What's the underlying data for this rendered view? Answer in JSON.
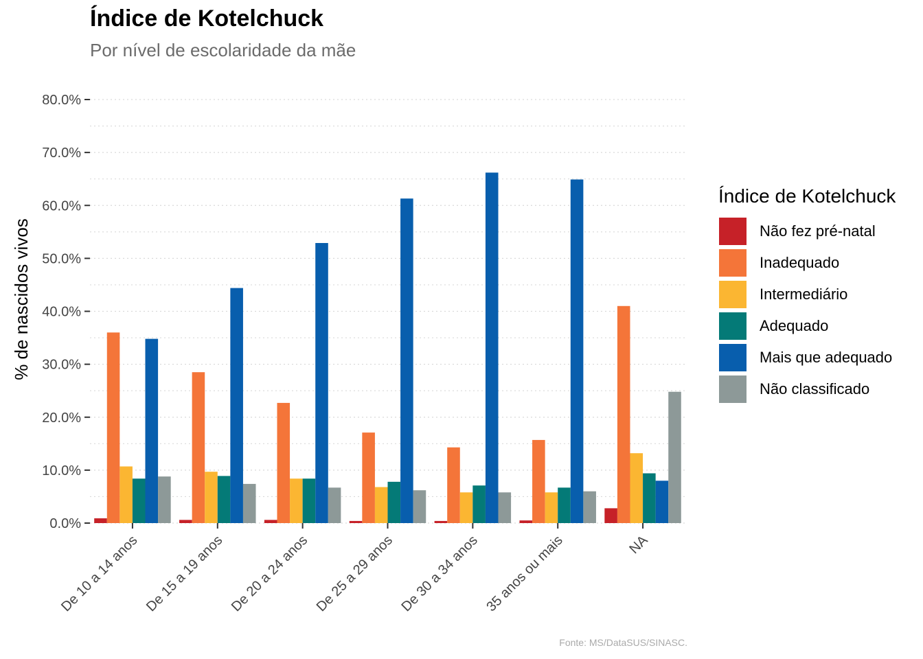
{
  "chart_data": {
    "type": "bar",
    "title": "Índice de Kotelchuck",
    "subtitle": "Por nível de escolaridade da mãe",
    "xlabel": "",
    "ylabel": "% de nascidos vivos",
    "caption": "Fonte: MS/DataSUS/SINASC.",
    "ylim": [
      0,
      80
    ],
    "yticks": [
      "0.0%",
      "10.0%",
      "20.0%",
      "30.0%",
      "40.0%",
      "50.0%",
      "60.0%",
      "70.0%",
      "80.0%"
    ],
    "grid": true,
    "legend": {
      "title": "Índice de Kotelchuck",
      "position": "right"
    },
    "categories": [
      "De 10 a 14 anos",
      "De 15 a 19 anos",
      "De 20 a 24 anos",
      "De 25 a 29 anos",
      "De 30 a 34 anos",
      "35 anos ou mais",
      "NA"
    ],
    "series": [
      {
        "name": "Não fez pré-natal",
        "color": "#C62128",
        "values": [
          0.9,
          0.6,
          0.6,
          0.4,
          0.4,
          0.5,
          2.8
        ]
      },
      {
        "name": "Inadequado",
        "color": "#F47539",
        "values": [
          36.0,
          28.5,
          22.7,
          17.1,
          14.3,
          15.7,
          41.0
        ]
      },
      {
        "name": "Intermediário",
        "color": "#FBB632",
        "values": [
          10.7,
          9.7,
          8.4,
          6.8,
          5.8,
          5.8,
          13.2
        ]
      },
      {
        "name": "Adequado",
        "color": "#047A77",
        "values": [
          8.4,
          8.9,
          8.4,
          7.8,
          7.1,
          6.7,
          9.4
        ]
      },
      {
        "name": "Mais que adequado",
        "color": "#085EAD",
        "values": [
          34.8,
          44.4,
          52.9,
          61.3,
          66.2,
          64.9,
          8.0
        ]
      },
      {
        "name": "Não classificado",
        "color": "#8D9998",
        "values": [
          8.8,
          7.4,
          6.7,
          6.2,
          5.8,
          6.0,
          24.8
        ]
      }
    ]
  }
}
